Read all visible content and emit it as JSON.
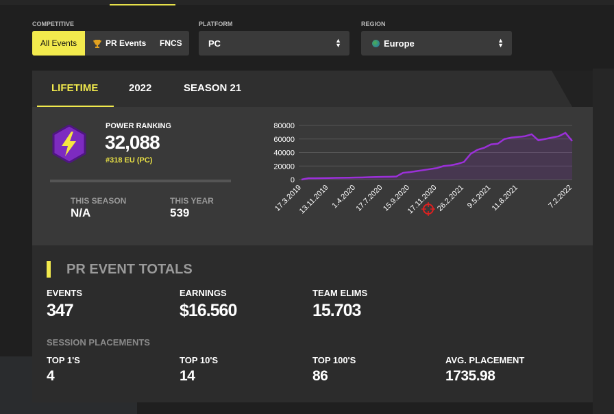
{
  "filters": {
    "competitive": {
      "label": "COMPETITIVE",
      "options": [
        "All Events",
        "PR Events",
        "FNCS"
      ]
    },
    "platform": {
      "label": "PLATFORM",
      "value": "PC"
    },
    "region": {
      "label": "REGION",
      "value": "Europe"
    }
  },
  "tabs": [
    "LIFETIME",
    "2022",
    "SEASON 21"
  ],
  "power": {
    "label": "POWER RANKING",
    "value": "32,088",
    "rank": "#318 EU (PC)",
    "this_season": {
      "label": "THIS SEASON",
      "value": "N/A"
    },
    "this_year": {
      "label": "THIS YEAR",
      "value": "539"
    }
  },
  "chart_data": {
    "type": "line",
    "color": "#9b30d9",
    "categories": [
      "17.3.2019",
      null,
      null,
      null,
      "13.11.2019",
      null,
      null,
      null,
      "1.4.2020",
      null,
      null,
      null,
      "17.7.2020",
      null,
      null,
      null,
      "15.9.2020",
      null,
      null,
      null,
      "17.11.2020",
      null,
      null,
      null,
      "26.2.2021",
      null,
      null,
      null,
      "9.5.2021",
      null,
      null,
      null,
      "11.8.2021",
      null,
      null,
      null,
      null,
      null,
      null,
      null,
      "7.2.2022"
    ],
    "values": [
      0,
      2000,
      2000,
      2200,
      2300,
      2500,
      2600,
      2800,
      3000,
      3200,
      3500,
      3800,
      4000,
      4200,
      4500,
      10000,
      11000,
      12500,
      14000,
      15500,
      17000,
      20000,
      21000,
      23000,
      26000,
      38000,
      44000,
      47000,
      52000,
      53000,
      60000,
      62000,
      63000,
      64000,
      67000,
      58000,
      60000,
      62000,
      64000,
      69000,
      57000
    ],
    "ylim": [
      0,
      80000
    ],
    "yticks": [
      0,
      20000,
      40000,
      60000,
      80000
    ],
    "grid": true
  },
  "totals": {
    "title": "PR EVENT TOTALS",
    "stats": [
      {
        "label": "EVENTS",
        "value": "347"
      },
      {
        "label": "EARNINGS",
        "value": "$16.560"
      },
      {
        "label": "TEAM ELIMS",
        "value": "15.703"
      }
    ],
    "placements_title": "SESSION PLACEMENTS",
    "placements": [
      {
        "label": "TOP 1'S",
        "value": "4"
      },
      {
        "label": "TOP 10'S",
        "value": "14"
      },
      {
        "label": "TOP 100'S",
        "value": "86"
      },
      {
        "label": "AVG. PLACEMENT",
        "value": "1735.98"
      }
    ]
  }
}
